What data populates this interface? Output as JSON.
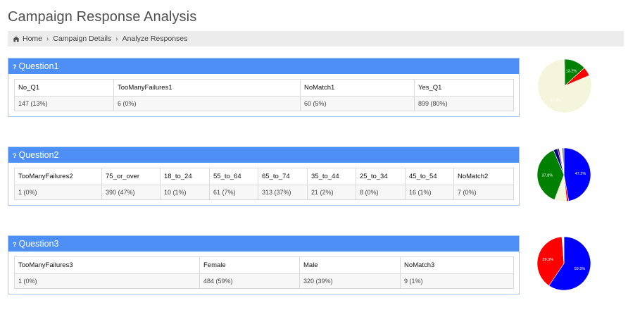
{
  "page": {
    "title": "Campaign Response Analysis"
  },
  "breadcrumb": {
    "icon": "home-icon",
    "items": [
      "Home",
      "Campaign Details",
      "Analyze Responses"
    ],
    "separator": "›"
  },
  "questions": [
    {
      "title": "Question1",
      "icon": "question-mark-icon",
      "headers": [
        "No_Q1",
        "TooManyFailures1",
        "NoMatch1",
        "Yes_Q1"
      ],
      "values": [
        "147 (13%)",
        "6 (0%)",
        "60 (5%)",
        "899 (80%)"
      ]
    },
    {
      "title": "Question2",
      "icon": "question-mark-icon",
      "headers": [
        "TooManyFailures2",
        "75_or_over",
        "18_to_24",
        "55_to_64",
        "65_to_74",
        "35_to_44",
        "25_to_34",
        "45_to_54",
        "NoMatch2"
      ],
      "values": [
        "1 (0%)",
        "390 (47%)",
        "10 (1%)",
        "61 (7%)",
        "313 (37%)",
        "21 (2%)",
        "8 (0%)",
        "16 (1%)",
        "7 (0%)"
      ]
    },
    {
      "title": "Question3",
      "icon": "question-mark-icon",
      "headers": [
        "TooManyFailures3",
        "Female",
        "Male",
        "NoMatch3"
      ],
      "values": [
        "1 (0%)",
        "484 (59%)",
        "320 (39%)",
        "9 (1%)"
      ]
    }
  ],
  "chart_data": [
    {
      "type": "pie",
      "start": "top",
      "direction": "clockwise",
      "slices": [
        {
          "value": 147,
          "color": "#008000",
          "label": "13.2%"
        },
        {
          "value": 60,
          "color": "#ff0000",
          "label": ""
        },
        {
          "value": 899,
          "color": "#f5f5dc",
          "label": "80.8%"
        },
        {
          "value": 6,
          "color": "#999999",
          "label": ""
        }
      ]
    },
    {
      "type": "pie",
      "start": "top",
      "direction": "clockwise",
      "slices": [
        {
          "value": 390,
          "color": "#0000ff",
          "label": "47.2%"
        },
        {
          "value": 10,
          "color": "#ff0000",
          "label": ""
        },
        {
          "value": 61,
          "color": "#f5f5dc",
          "label": ""
        },
        {
          "value": 313,
          "color": "#008000",
          "label": "37.8%"
        },
        {
          "value": 21,
          "color": "#000080",
          "label": ""
        },
        {
          "value": 8,
          "color": "#800080",
          "label": ""
        },
        {
          "value": 16,
          "color": "#ffffff",
          "label": ""
        },
        {
          "value": 7,
          "color": "#333333",
          "label": ""
        },
        {
          "value": 1,
          "color": "#999999",
          "label": ""
        }
      ]
    },
    {
      "type": "pie",
      "start": "top",
      "direction": "clockwise",
      "slices": [
        {
          "value": 484,
          "color": "#0000ff",
          "label": "59.5%"
        },
        {
          "value": 320,
          "color": "#ff0000",
          "label": "39.3%"
        },
        {
          "value": 9,
          "color": "#f5f5dc",
          "label": ""
        },
        {
          "value": 1,
          "color": "#999999",
          "label": ""
        }
      ]
    }
  ]
}
